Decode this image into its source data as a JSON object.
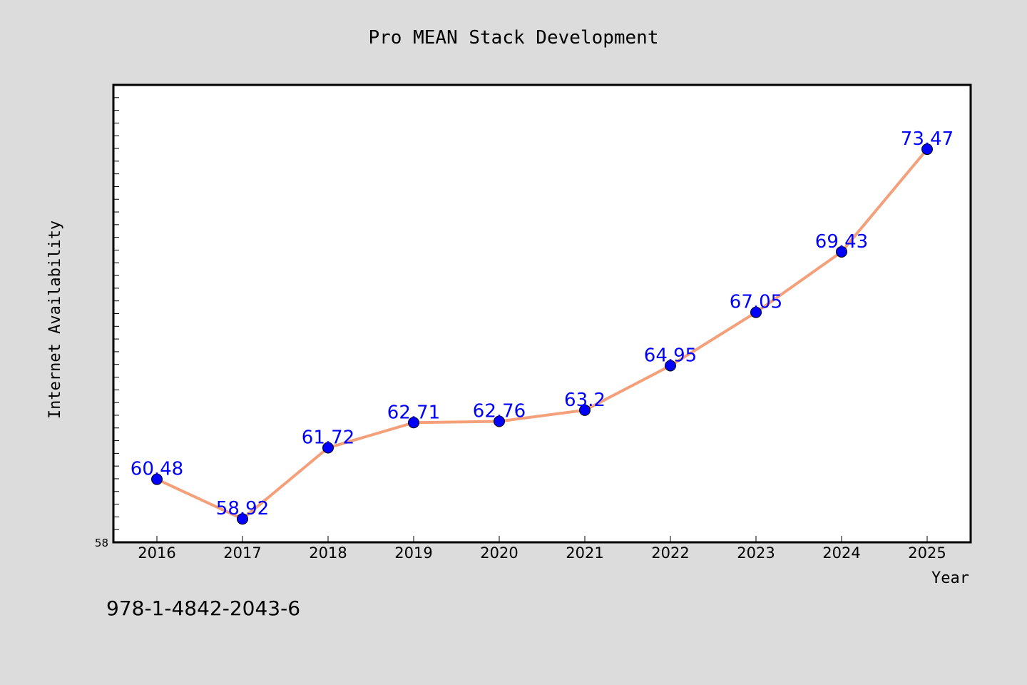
{
  "chart_data": {
    "type": "line",
    "title": "Pro MEAN Stack Development",
    "xlabel": "Year",
    "ylabel": "Internet Availability",
    "x": [
      "2016",
      "2017",
      "2018",
      "2019",
      "2020",
      "2021",
      "2022",
      "2023",
      "2024",
      "2025"
    ],
    "series": [
      {
        "values": [
          60.48,
          58.92,
          61.72,
          62.71,
          62.76,
          63.2,
          64.95,
          67.05,
          69.43,
          73.47
        ],
        "data_labels": [
          "60.48",
          "58.92",
          "61.72",
          "62.71",
          "62.76",
          "63.2",
          "64.95",
          "67.05",
          "69.43",
          "73.47"
        ],
        "line_color": "#f4a07a",
        "marker_color": "#0000ff"
      }
    ],
    "ylim": [
      58,
      76
    ],
    "ytick_labels": [
      "58"
    ],
    "grid": false,
    "annotation": "978-1-4842-2043-6",
    "colors": {
      "background": "#dcdcdc",
      "plot_area": "#ffffff",
      "label_color": "#0000ff"
    }
  }
}
